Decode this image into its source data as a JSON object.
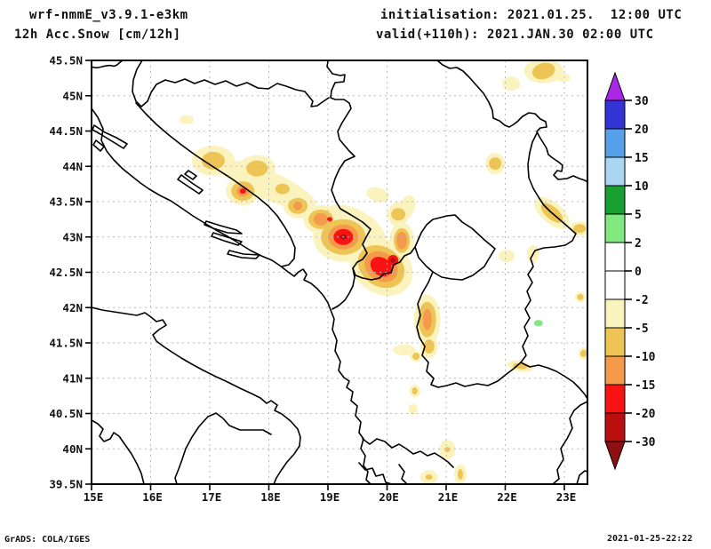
{
  "header": {
    "model": "wrf-nmmE_v3.9.1-e3km",
    "field": "12h Acc.Snow [cm/12h]",
    "init_label": "initialisation: 2021.01.25.  12:00 UTC",
    "valid_label": "valid(+110h): 2021.JAN.30 02:00 UTC"
  },
  "footer": {
    "left": "GrADS: COLA/IGES",
    "right": "2021-01-25-22:22"
  },
  "axes": {
    "lat_labels": [
      "45.5N",
      "45N",
      "44.5N",
      "44N",
      "43.5N",
      "43N",
      "42.5N",
      "42N",
      "41.5N",
      "41N",
      "40.5N",
      "40N",
      "39.5N"
    ],
    "lon_labels": [
      "15E",
      "16E",
      "17E",
      "18E",
      "19E",
      "20E",
      "21E",
      "22E",
      "23E"
    ]
  },
  "colorbar": {
    "labels": [
      "30",
      "20",
      "15",
      "10",
      "5",
      "2",
      "0",
      "-2",
      "-5",
      "-10",
      "-15",
      "-20",
      "-30"
    ],
    "segment_colors": [
      "#3333D6",
      "#55A0E8",
      "#AAD6F2",
      "#18A030",
      "#7FE87F",
      "#FFFFFF",
      "#FFFFFF",
      "#FBF3BE",
      "#EEC455",
      "#F59A4D",
      "#F81414",
      "#BC1010"
    ],
    "arrow_top": "#A928E8",
    "arrow_bottom": "#8E1010"
  },
  "chart_data": {
    "type": "heatmap",
    "title": "12h Acc.Snow [cm/12h]",
    "units": "cm/12h",
    "model": "wrf-nmmE_v3.9.1-e3km",
    "init": "2021.01.25. 12:00 UTC",
    "valid": "2021.JAN.30 02:00 UTC (+110h)",
    "lon_range": [
      15,
      23.4
    ],
    "lat_range": [
      39.5,
      45.5
    ],
    "grid": {
      "lon_step": 1,
      "lat_step": 0.5
    },
    "levels": [
      30,
      20,
      15,
      10,
      5,
      2,
      0,
      -2,
      -5,
      -10,
      -15,
      -20,
      -30
    ],
    "palette": {
      "pale": "#FBF3BE",
      "gold": "#EEC455",
      "orange": "#F59A4D",
      "red": "#F81414",
      "dred": "#BC1010",
      "green": "#7FE87F"
    },
    "level_bands": {
      "pale": "-2..-5",
      "gold": "-5..-10",
      "orange": "-10..-15",
      "red": "-15..-20",
      "dred": "-20..-30",
      "green": "2..5"
    },
    "level_order": [
      "pale",
      "gold",
      "orange",
      "red",
      "dred",
      "green"
    ],
    "features": [
      {
        "lon": 17.96,
        "lat": 43.74,
        "layers": [
          [
            "pale",
            60,
            16,
            23
          ]
        ]
      },
      {
        "lon": 19.44,
        "lat": 43.11,
        "layers": [
          [
            "pale",
            40,
            22,
            30
          ]
        ]
      },
      {
        "lon": 17.06,
        "lat": 44.08,
        "layers": [
          [
            "pale",
            24,
            17,
            0
          ],
          [
            "gold",
            13,
            10,
            0
          ]
        ]
      },
      {
        "lon": 17.8,
        "lat": 43.97,
        "layers": [
          [
            "pale",
            21,
            15,
            0
          ],
          [
            "gold",
            12,
            9,
            0
          ]
        ]
      },
      {
        "lon": 17.56,
        "lat": 43.65,
        "layers": [
          [
            "pale",
            19,
            16,
            0
          ],
          [
            "gold",
            13,
            11,
            0
          ],
          [
            "orange",
            7,
            6,
            0
          ],
          [
            "red",
            3.5,
            3,
            0
          ]
        ]
      },
      {
        "lon": 18.23,
        "lat": 43.68,
        "layers": [
          [
            "pale",
            12,
            9,
            0
          ],
          [
            "gold",
            8,
            6,
            0
          ]
        ]
      },
      {
        "lon": 18.49,
        "lat": 43.44,
        "layers": [
          [
            "pale",
            16,
            14,
            0
          ],
          [
            "gold",
            11,
            9,
            0
          ],
          [
            "orange",
            5,
            5,
            0
          ]
        ]
      },
      {
        "lon": 18.88,
        "lat": 43.25,
        "layers": [
          [
            "pale",
            20,
            16,
            0
          ],
          [
            "gold",
            14,
            11,
            0
          ],
          [
            "orange",
            8,
            7,
            0
          ]
        ]
      },
      {
        "lon": 19.03,
        "lat": 43.25,
        "layers": [
          [
            "red",
            3,
            2.5,
            0
          ]
        ]
      },
      {
        "lon": 19.26,
        "lat": 43.0,
        "layers": [
          [
            "pale",
            34,
            28,
            0
          ],
          [
            "gold",
            25,
            20,
            0
          ],
          [
            "orange",
            17,
            14,
            0
          ],
          [
            "red",
            11,
            9,
            0
          ],
          [
            "dred",
            4,
            3,
            0
          ]
        ]
      },
      {
        "lon": 19.9,
        "lat": 42.58,
        "layers": [
          [
            "pale",
            38,
            30,
            35
          ],
          [
            "gold",
            28,
            22,
            35
          ],
          [
            "orange",
            20,
            16,
            35
          ],
          [
            "red",
            13,
            10,
            35
          ]
        ]
      },
      {
        "lon": 20.1,
        "lat": 42.67,
        "layers": [
          [
            "red",
            6,
            6,
            0
          ],
          [
            "dred",
            3,
            3,
            0
          ]
        ]
      },
      {
        "lon": 20.25,
        "lat": 42.95,
        "layers": [
          [
            "pale",
            14,
            20,
            0
          ],
          [
            "gold",
            9,
            14,
            0
          ],
          [
            "orange",
            6,
            10,
            0
          ]
        ]
      },
      {
        "lon": 20.19,
        "lat": 43.32,
        "layers": [
          [
            "pale",
            12,
            14,
            0
          ],
          [
            "gold",
            8,
            7,
            0
          ]
        ]
      },
      {
        "lon": 20.32,
        "lat": 43.4,
        "layers": [
          [
            "pale",
            9,
            16,
            25
          ]
        ]
      },
      {
        "lon": 19.84,
        "lat": 43.6,
        "layers": [
          [
            "pale",
            13,
            8,
            15
          ]
        ]
      },
      {
        "lon": 20.68,
        "lat": 41.83,
        "layers": [
          [
            "pale",
            15,
            28,
            0
          ],
          [
            "gold",
            10,
            20,
            0
          ],
          [
            "orange",
            5,
            12,
            0
          ]
        ]
      },
      {
        "lon": 20.71,
        "lat": 41.45,
        "layers": [
          [
            "pale",
            10,
            13,
            0
          ],
          [
            "gold",
            6,
            8,
            0
          ]
        ]
      },
      {
        "lon": 20.29,
        "lat": 41.4,
        "layers": [
          [
            "pale",
            13,
            6,
            0
          ]
        ]
      },
      {
        "lon": 21.83,
        "lat": 44.04,
        "layers": [
          [
            "pale",
            11,
            12,
            0
          ],
          [
            "gold",
            7,
            7,
            0
          ]
        ]
      },
      {
        "lon": 22.65,
        "lat": 45.35,
        "layers": [
          [
            "pale",
            22,
            14,
            0
          ],
          [
            "gold",
            13,
            9,
            -15
          ]
        ]
      },
      {
        "lon": 22.1,
        "lat": 45.17,
        "layers": [
          [
            "pale",
            10,
            8,
            0
          ]
        ]
      },
      {
        "lon": 22.98,
        "lat": 45.26,
        "layers": [
          [
            "pale",
            8,
            5,
            0
          ]
        ]
      },
      {
        "lon": 22.79,
        "lat": 43.34,
        "layers": [
          [
            "pale",
            24,
            12,
            40
          ],
          [
            "gold",
            15,
            7,
            40
          ]
        ]
      },
      {
        "lon": 23.26,
        "lat": 43.12,
        "layers": [
          [
            "pale",
            11,
            8,
            0
          ],
          [
            "gold",
            7,
            5,
            0
          ]
        ]
      },
      {
        "lon": 22.02,
        "lat": 42.73,
        "layers": [
          [
            "pale",
            9,
            7,
            0
          ]
        ]
      },
      {
        "lon": 22.47,
        "lat": 42.76,
        "layers": [
          [
            "pale",
            7,
            10,
            0
          ]
        ]
      },
      {
        "lon": 23.27,
        "lat": 42.15,
        "layers": [
          [
            "pale",
            6,
            6,
            0
          ],
          [
            "gold",
            3.5,
            3.5,
            0
          ]
        ]
      },
      {
        "lon": 23.33,
        "lat": 41.35,
        "layers": [
          [
            "pale",
            6,
            7,
            0
          ],
          [
            "gold",
            4,
            4,
            0
          ]
        ]
      },
      {
        "lon": 22.25,
        "lat": 41.17,
        "layers": [
          [
            "pale",
            15,
            6,
            10
          ],
          [
            "gold",
            8,
            3,
            10
          ]
        ]
      },
      {
        "lon": 21.02,
        "lat": 39.99,
        "layers": [
          [
            "pale",
            9,
            11,
            0
          ],
          [
            "gold",
            3,
            3,
            0
          ]
        ]
      },
      {
        "lon": 21.24,
        "lat": 39.64,
        "layers": [
          [
            "pale",
            7,
            11,
            0
          ],
          [
            "gold",
            3,
            6,
            0
          ]
        ]
      },
      {
        "lon": 20.71,
        "lat": 39.6,
        "layers": [
          [
            "pale",
            10,
            8,
            0
          ],
          [
            "gold",
            4,
            3,
            0
          ]
        ]
      },
      {
        "lon": 20.47,
        "lat": 40.82,
        "layers": [
          [
            "pale",
            6,
            7,
            0
          ],
          [
            "gold",
            3,
            4,
            0
          ]
        ]
      },
      {
        "lon": 20.49,
        "lat": 41.31,
        "layers": [
          [
            "pale",
            7,
            6,
            0
          ],
          [
            "gold",
            4,
            4,
            0
          ]
        ]
      },
      {
        "lon": 20.44,
        "lat": 40.56,
        "layers": [
          [
            "pale",
            5,
            6,
            0
          ]
        ]
      },
      {
        "lon": 16.61,
        "lat": 44.66,
        "layers": [
          [
            "pale",
            8,
            5,
            0
          ]
        ]
      },
      {
        "lon": 22.56,
        "lat": 41.78,
        "layers": [
          [
            "green",
            5,
            3.5,
            0
          ]
        ]
      }
    ],
    "maxima_summary": [
      {
        "lon": 19.26,
        "lat": 43.0,
        "band": "-20..-30"
      },
      {
        "lon": 19.9,
        "lat": 42.6,
        "band": "-15..-20"
      },
      {
        "lon": 17.56,
        "lat": 43.65,
        "band": "-15..-20"
      },
      {
        "lon": 22.56,
        "lat": 41.78,
        "band": "2..5"
      }
    ]
  },
  "map": {
    "outlines": [
      "M103,75 C110,79 118,72 126,74 C131,76 134,70 138,68",
      "M106,141 L118,149 L131,155 L143,162 L139,167 L126,159 L113,151 L104,146 Z",
      "M108,158 L117,165 L113,170 L105,163 Z",
      "M103,122 L110,132 L116,145 L114,158 L120,170 L128,180 L138,190 L148,198 L158,206 L168,213 L180,220 L192,226 L204,234 L217,243 L230,251 L243,259 L256,266 L269,274 L282,282 L294,288 L306,293 L315,299 L324,306 L331,311 L336,306 L341,303 L345,309 L342,315 L350,319 L357,325 L364,333 L369,341 L372,349 L376,359 L374,371 L379,383 L377,395 L383,407 L381,417 L387,425 L393,429 L390,436 L397,441 L395,451 L402,457 L400,468 L406,475 L404,487 L409,494 L406,505 L411,513 L409,524 L414,531 L412,540 L417,545",
      "M232,249 L248,254 L266,259 L272,263 L256,262 L240,257 L230,253 Z",
      "M240,262 L256,267 L272,272 L268,276 L252,271 L238,266 Z",
      "M258,282 L274,286 L292,287 L288,291 L272,290 L256,286 Z",
      "M204,197 L216,206 L228,214 L224,218 L212,210 L200,202 Z",
      "M212,192 L221,198 L217,202 L208,196 Z",
      "M160,68 L154,78 L150,90 L149,103 L153,114 L159,120 L166,114 L170,104 L176,95 L186,90 L197,93 L208,89 L219,94 L230,90 L242,95 L254,91 L266,97 L278,93 L290,99 L302,100 L312,94 L322,97 L333,101 L343,103 L352,114 L350,120 L357,119 L364,114 L370,110",
      "M153,116 L164,128 L176,140 L190,152 L204,163 L219,174 L234,184 L248,193 L262,202 L276,212 L290,222 L302,232 L312,243 L320,255 L327,267 L332,279 L331,291 L325,298 L317,300",
      "M370,63 L368,75 L374,83 L383,85 L388,84 L387,92 L377,93 L373,102 L372,110 L377,112 L387,112 L393,116 L395,122 L390,130 L385,138 L380,148 L382,157 L387,163 L393,170 L399,176 L388,181 L382,190 L377,201 L373,214 L378,227 L383,235 L395,242 L408,250 L417,258 L412,267 L408,275 L413,285 L408,292 L402,295 L397,302 L400,310 L408,313 L418,315 L427,313 L432,308 L440,307 L443,298 L450,295 L455,288 L462,285 L467,278",
      "M397,302 L399,312 L397,322 L393,330 L388,338 L381,344 L374,348",
      "M492,68 L498,73 L506,77 L514,76 L521,80 L528,87 L536,96 L544,105 L550,115 L554,124 L555,133 L562,136 L568,141 L573,143 L578,140 L582,137 L588,131 L595,127 L602,128 L608,134 L614,137 L615,143 L608,144 L604,148 L607,154 L612,162 L615,167 L617,174 L622,178 L628,182 L633,186 L632,193 L627,192 L623,197 L628,202 L638,201 L645,198 L652,201 L658,203 L661,205",
      "M604,150 L599,160 L596,172 L594,185 L595,200 L600,212 L606,222 L612,231 L619,238 L626,244 L633,250 L641,257 L648,263 L644,271 L636,276 L624,278 L612,279 L602,282 L597,291 L600,300 L594,309 L599,318 L593,328 L597,338 L591,348 L596,358 L590,368 L594,378 L588,390 L592,400 L586,408",
      "M586,408 L596,413 L606,411 L616,414 L626,418 L636,424 L645,430 L652,437 L658,444 L661,449",
      "M495,245 L503,243 L512,242 L520,250 L531,257 L545,270 L557,280 L549,293 L545,300 L532,310 L520,315 L508,314 L497,312 L487,306 L480,300 L471,290 L467,278 L474,262 L480,253 L487,247 Z",
      "M487,306 L482,318 L475,330 L470,342 L473,355 L469,368 L472,380 L478,390 L475,400 L482,408 L480,418 L488,426 L485,433 L493,436 L503,434 L513,431 L523,435 L537,432 L549,434 L560,429 L570,421 L578,415 L586,408",
      "M408,494 L416,500 L424,494 L433,497 L441,504 L449,500 L457,505 L465,511 L473,508 L481,513 L489,510 L497,515 L504,520 L510,526",
      "M404,521 L411,529 L419,527 L423,536 L431,534 L434,543 L441,545",
      "M449,523 L455,531 L452,539 L458,545",
      "M661,452 L653,456 L646,462 L641,471 L644,482 L638,494 L631,505 L634,517 L627,529 L629,539 L622,545",
      "M103,346 L115,349 L128,351 L141,353 L154,355 L163,352 L170,357 L176,362 L183,360 L187,366 L179,371 L172,377 L176,384 L184,390 L193,396 L204,403 L216,410 L229,417 L243,424 L256,430 L270,437 L283,443 L293,448 L300,454 L305,451 L312,456 L309,462 L317,466 L327,474 L335,483 L338,492 L337,502 L331,511 L323,520 L316,530 L311,538 L308,545",
      "M305,489 L296,484 L283,484 L270,484 L258,479 L251,471 L243,465 L234,469 L224,480 L216,492 L209,505 L205,517 L201,528 L197,538 L199,545",
      "M103,473 L110,477 L116,483 L112,491 L117,497 L124,494 L128,487 L134,491 L141,501 L148,511 L154,522 L159,533 L162,545",
      "M649,545 L652,535 L658,530 L661,531"
    ]
  }
}
